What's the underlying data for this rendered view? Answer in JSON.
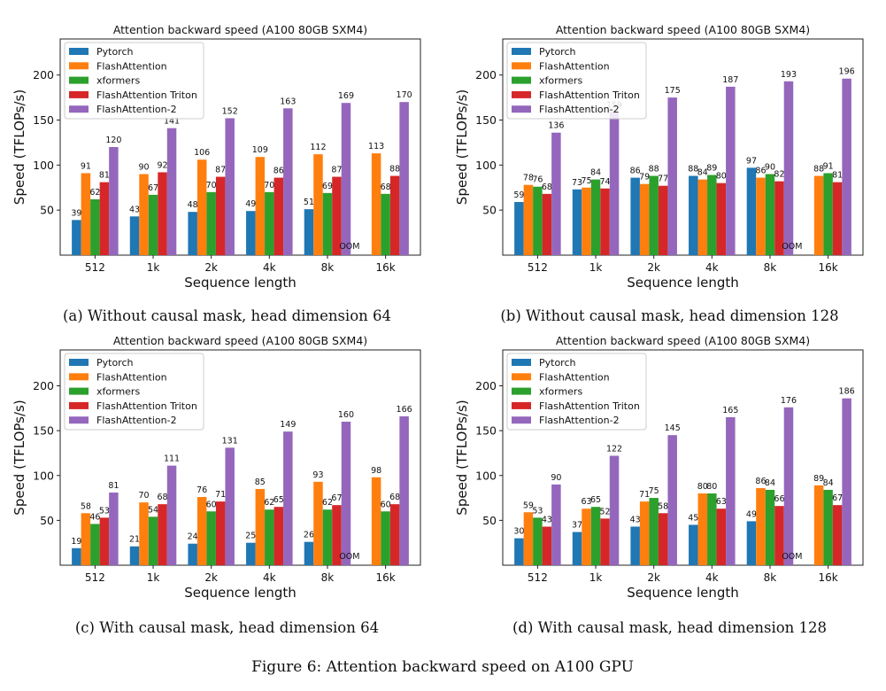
{
  "figure_caption": "Figure 6: Attention backward speed on A100 GPU",
  "oom_label": "OOM",
  "chart_data": [
    {
      "type": "bar",
      "panel": "a",
      "title": "Attention backward speed (A100 80GB SXM4)",
      "caption": "(a) Without causal mask, head dimension 64",
      "xlabel": "Sequence length",
      "ylabel": "Speed (TFLOPs/s)",
      "ylim": [
        0,
        240
      ],
      "yticks": [
        50,
        100,
        150,
        200
      ],
      "legend_position": "top-left",
      "categories": [
        "512",
        "1k",
        "2k",
        "4k",
        "8k",
        "16k"
      ],
      "series": [
        {
          "name": "Pytorch",
          "color": "#1f77b4",
          "values": [
            39,
            43,
            48,
            49,
            51,
            null
          ]
        },
        {
          "name": "FlashAttention",
          "color": "#ff7f0e",
          "values": [
            91,
            90,
            106,
            109,
            112,
            113
          ]
        },
        {
          "name": "xformers",
          "color": "#2ca02c",
          "values": [
            62,
            67,
            70,
            70,
            69,
            68
          ]
        },
        {
          "name": "FlashAttention Triton",
          "color": "#d62728",
          "values": [
            81,
            92,
            87,
            86,
            87,
            88
          ]
        },
        {
          "name": "FlashAttention-2",
          "color": "#9467bd",
          "values": [
            120,
            141,
            152,
            163,
            169,
            170
          ]
        }
      ],
      "annotations": [
        {
          "text": "OOM",
          "category": "16k",
          "series": "Pytorch"
        }
      ]
    },
    {
      "type": "bar",
      "panel": "b",
      "title": "Attention backward speed (A100 80GB SXM4)",
      "caption": "(b) Without causal mask, head dimension 128",
      "xlabel": "Sequence length",
      "ylabel": "Speed (TFLOPs/s)",
      "ylim": [
        0,
        240
      ],
      "yticks": [
        50,
        100,
        150,
        200
      ],
      "legend_position": "top-left",
      "categories": [
        "512",
        "1k",
        "2k",
        "4k",
        "8k",
        "16k"
      ],
      "series": [
        {
          "name": "Pytorch",
          "color": "#1f77b4",
          "values": [
            59,
            73,
            86,
            88,
            97,
            null
          ]
        },
        {
          "name": "FlashAttention",
          "color": "#ff7f0e",
          "values": [
            78,
            75,
            79,
            84,
            86,
            88
          ]
        },
        {
          "name": "xformers",
          "color": "#2ca02c",
          "values": [
            76,
            84,
            88,
            89,
            90,
            91
          ]
        },
        {
          "name": "FlashAttention Triton",
          "color": "#d62728",
          "values": [
            68,
            74,
            77,
            80,
            82,
            81
          ]
        },
        {
          "name": "FlashAttention-2",
          "color": "#9467bd",
          "values": [
            136,
            159,
            175,
            187,
            193,
            196
          ]
        }
      ],
      "annotations": [
        {
          "text": "OOM",
          "category": "16k",
          "series": "Pytorch"
        }
      ]
    },
    {
      "type": "bar",
      "panel": "c",
      "title": "Attention backward speed (A100 80GB SXM4)",
      "caption": "(c) With causal mask, head dimension 64",
      "xlabel": "Sequence length",
      "ylabel": "Speed (TFLOPs/s)",
      "ylim": [
        0,
        240
      ],
      "yticks": [
        50,
        100,
        150,
        200
      ],
      "legend_position": "top-left",
      "categories": [
        "512",
        "1k",
        "2k",
        "4k",
        "8k",
        "16k"
      ],
      "series": [
        {
          "name": "Pytorch",
          "color": "#1f77b4",
          "values": [
            19,
            21,
            24,
            25,
            26,
            null
          ]
        },
        {
          "name": "FlashAttention",
          "color": "#ff7f0e",
          "values": [
            58,
            70,
            76,
            85,
            93,
            98
          ]
        },
        {
          "name": "xformers",
          "color": "#2ca02c",
          "values": [
            46,
            54,
            60,
            62,
            62,
            60
          ]
        },
        {
          "name": "FlashAttention Triton",
          "color": "#d62728",
          "values": [
            53,
            68,
            71,
            65,
            67,
            68
          ]
        },
        {
          "name": "FlashAttention-2",
          "color": "#9467bd",
          "values": [
            81,
            111,
            131,
            149,
            160,
            166
          ]
        }
      ],
      "annotations": [
        {
          "text": "OOM",
          "category": "16k",
          "series": "Pytorch"
        }
      ]
    },
    {
      "type": "bar",
      "panel": "d",
      "title": "Attention backward speed (A100 80GB SXM4)",
      "caption": "(d) With causal mask, head dimension 128",
      "xlabel": "Sequence length",
      "ylabel": "Speed (TFLOPs/s)",
      "ylim": [
        0,
        240
      ],
      "yticks": [
        50,
        100,
        150,
        200
      ],
      "legend_position": "top-left",
      "categories": [
        "512",
        "1k",
        "2k",
        "4k",
        "8k",
        "16k"
      ],
      "series": [
        {
          "name": "Pytorch",
          "color": "#1f77b4",
          "values": [
            30,
            37,
            43,
            45,
            49,
            null
          ]
        },
        {
          "name": "FlashAttention",
          "color": "#ff7f0e",
          "values": [
            59,
            63,
            71,
            80,
            86,
            89
          ]
        },
        {
          "name": "xformers",
          "color": "#2ca02c",
          "values": [
            53,
            65,
            75,
            80,
            84,
            84
          ]
        },
        {
          "name": "FlashAttention Triton",
          "color": "#d62728",
          "values": [
            43,
            52,
            58,
            63,
            66,
            67
          ]
        },
        {
          "name": "FlashAttention-2",
          "color": "#9467bd",
          "values": [
            90,
            122,
            145,
            165,
            176,
            186
          ]
        }
      ],
      "annotations": [
        {
          "text": "OOM",
          "category": "16k",
          "series": "Pytorch"
        }
      ]
    }
  ]
}
